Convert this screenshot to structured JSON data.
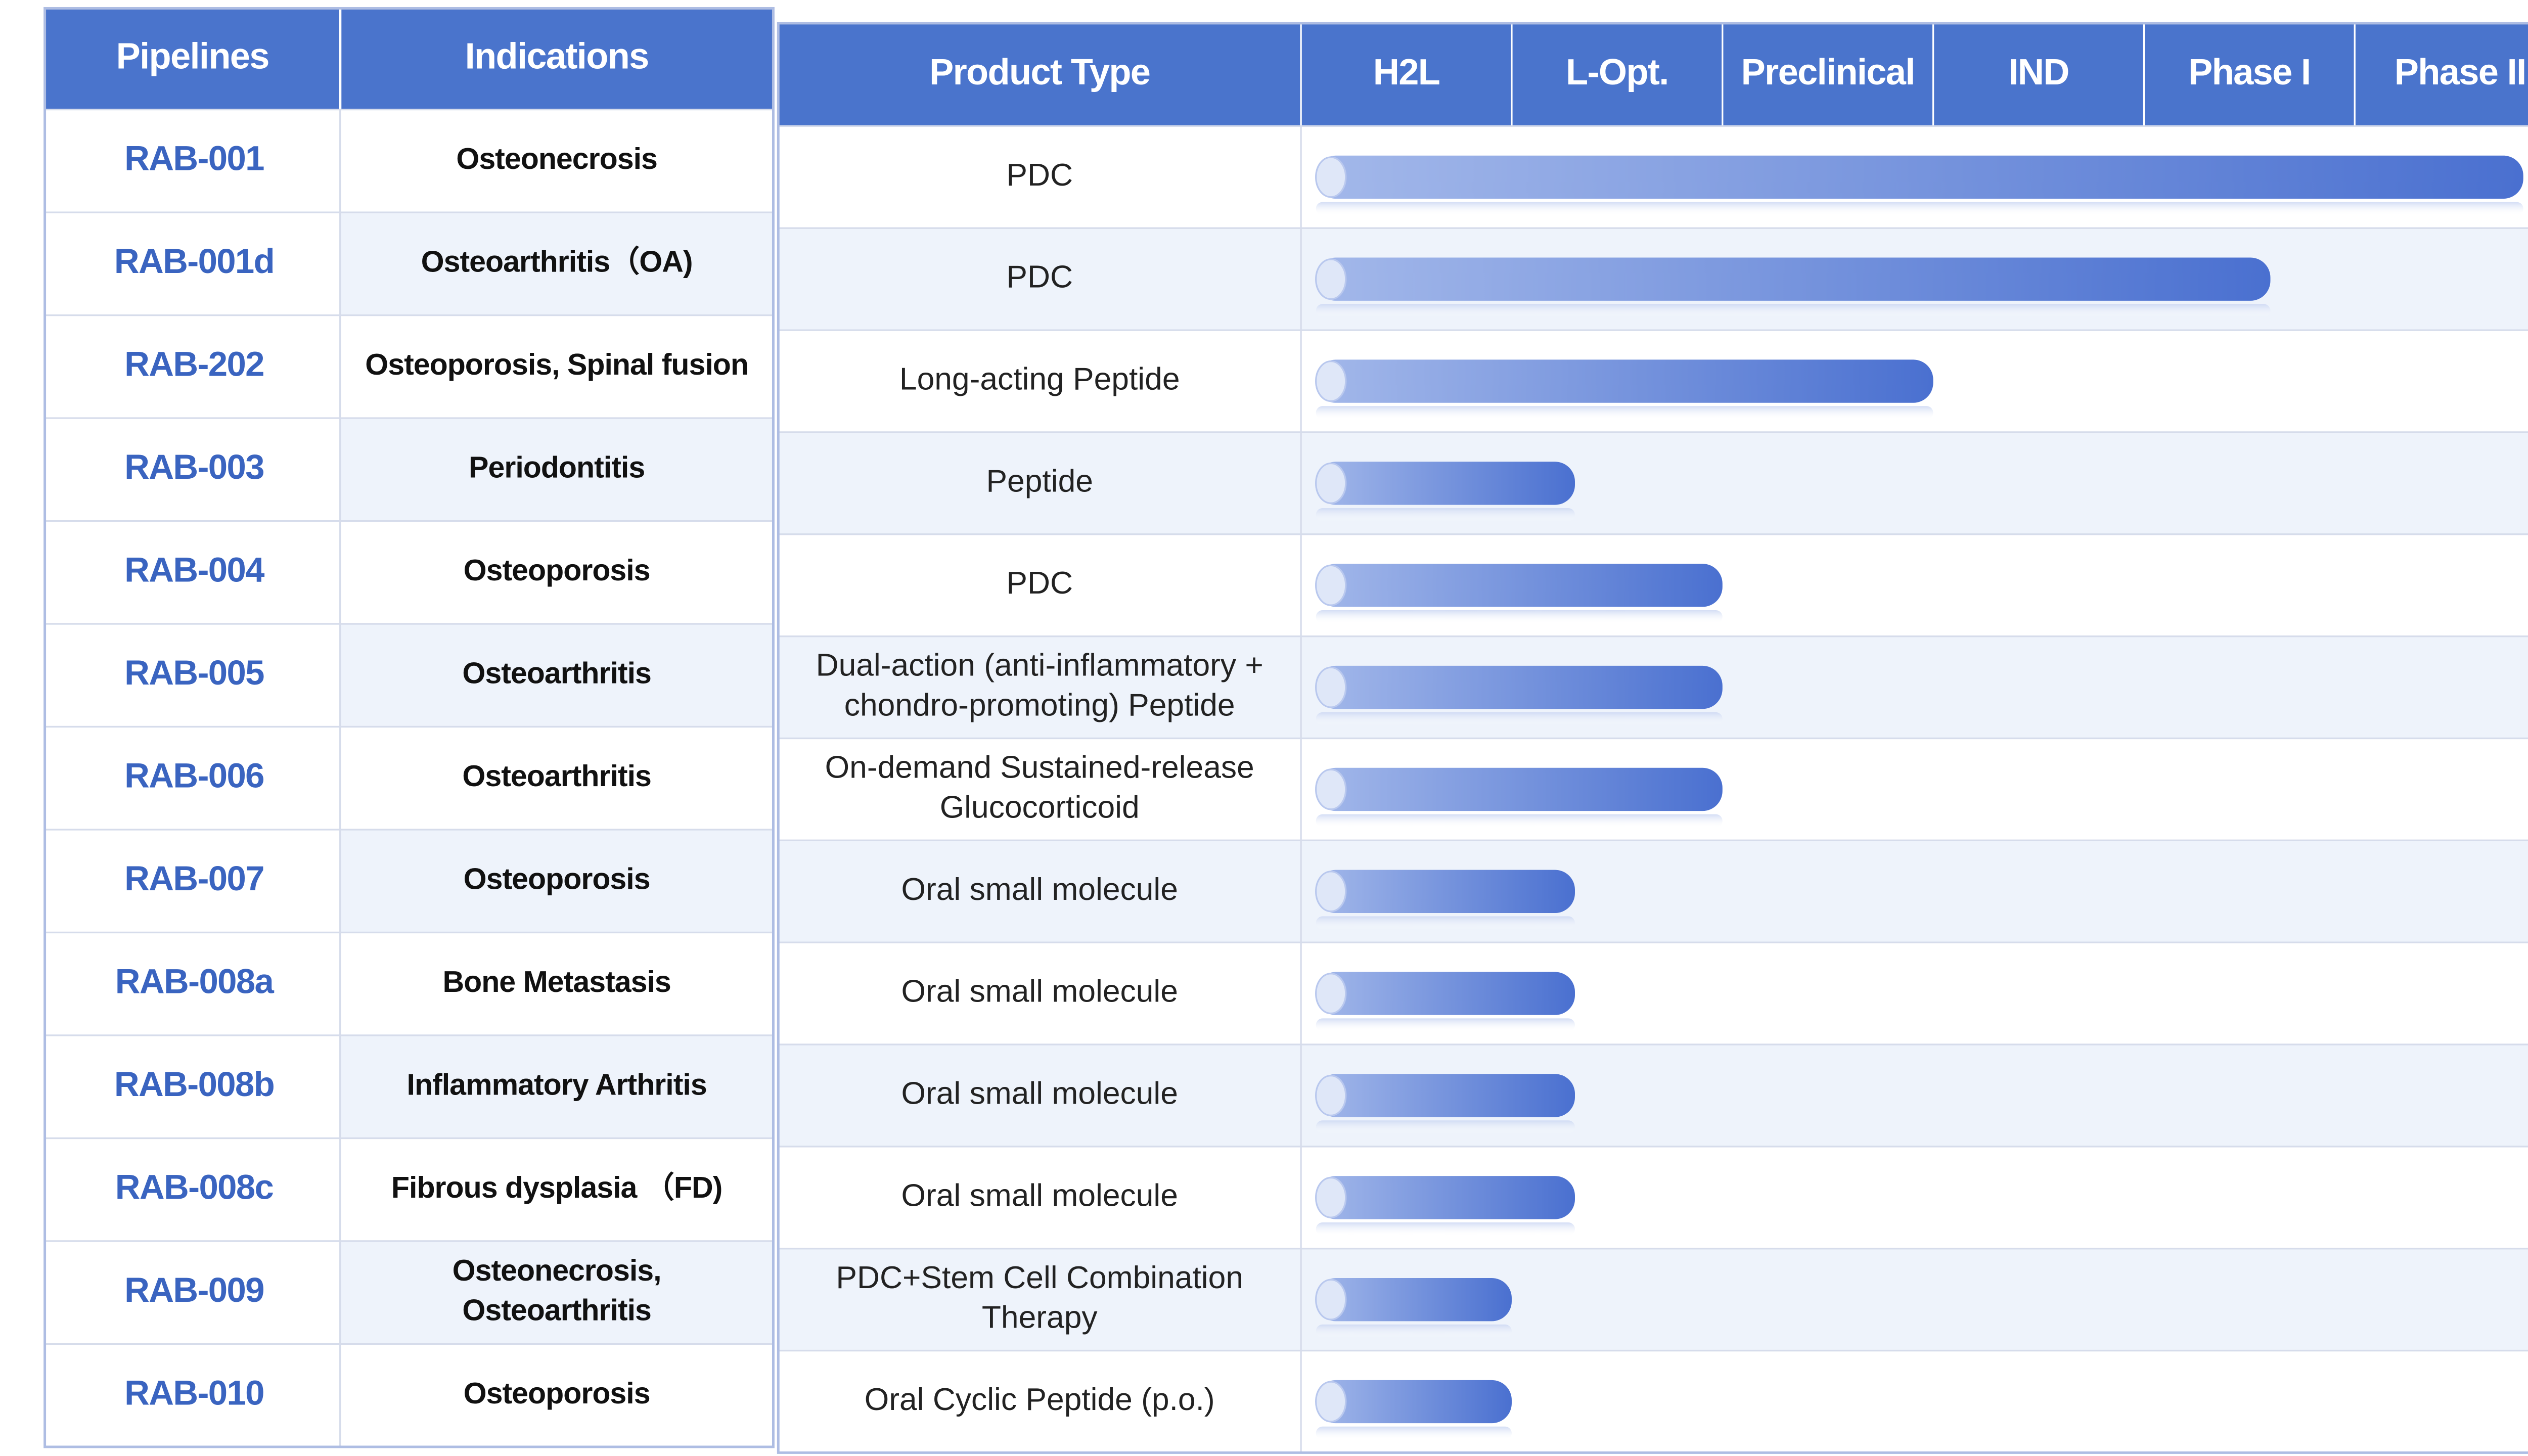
{
  "header": {
    "pipelines": "Pipelines",
    "indications": "Indications",
    "product_type": "Product Type",
    "stages": [
      "H2L",
      "L-Opt.",
      "Preclinical",
      "IND",
      "Phase I",
      "Phase II"
    ]
  },
  "progress_lim": [
    0,
    6
  ],
  "rows": [
    {
      "name": "RAB-001",
      "indication": [
        "Osteonecrosis"
      ],
      "product_type": [
        "PDC"
      ],
      "progress": 5.8
    },
    {
      "name": "RAB-001d",
      "indication": [
        "Osteoarthritis（OA)"
      ],
      "product_type": [
        "PDC"
      ],
      "progress": 4.6
    },
    {
      "name": "RAB-202",
      "indication": [
        "Osteoporosis, Spinal fusion"
      ],
      "product_type": [
        "Long-acting Peptide"
      ],
      "progress": 3.0
    },
    {
      "name": "RAB-003",
      "indication": [
        "Periodontitis"
      ],
      "product_type": [
        "Peptide"
      ],
      "progress": 1.3
    },
    {
      "name": "RAB-004",
      "indication": [
        "Osteoporosis"
      ],
      "product_type": [
        "PDC"
      ],
      "progress": 2.0
    },
    {
      "name": "RAB-005",
      "indication": [
        "Osteoarthritis"
      ],
      "product_type": [
        "Dual-action (anti-inflammatory +",
        "chondro-promoting) Peptide"
      ],
      "progress": 2.0
    },
    {
      "name": "RAB-006",
      "indication": [
        "Osteoarthritis"
      ],
      "product_type": [
        "On-demand Sustained-release",
        "Glucocorticoid"
      ],
      "progress": 2.0
    },
    {
      "name": "RAB-007",
      "indication": [
        "Osteoporosis"
      ],
      "product_type": [
        "Oral small molecule"
      ],
      "progress": 1.3
    },
    {
      "name": "RAB-008a",
      "indication": [
        "Bone Metastasis"
      ],
      "product_type": [
        "Oral small molecule"
      ],
      "progress": 1.3
    },
    {
      "name": "RAB-008b",
      "indication": [
        "Inflammatory Arthritis"
      ],
      "product_type": [
        "Oral small molecule"
      ],
      "progress": 1.3
    },
    {
      "name": "RAB-008c",
      "indication": [
        "Fibrous dysplasia （FD)"
      ],
      "product_type": [
        "Oral small molecule"
      ],
      "progress": 1.3
    },
    {
      "name": "RAB-009",
      "indication": [
        "Osteonecrosis,",
        "Osteoarthritis"
      ],
      "product_type": [
        "PDC+Stem Cell Combination",
        "Therapy"
      ],
      "progress": 1.0
    },
    {
      "name": "RAB-010",
      "indication": [
        "Osteoporosis"
      ],
      "product_type": [
        "Oral Cyclic Peptide (p.o.)"
      ],
      "progress": 1.0
    }
  ]
}
